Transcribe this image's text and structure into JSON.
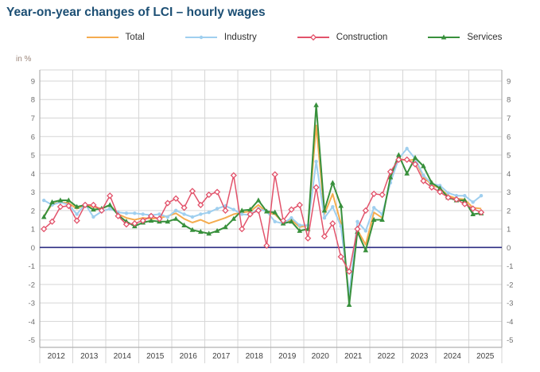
{
  "header": {
    "title": "Year-on-year changes of LCI – hourly wages"
  },
  "chart": {
    "unit_label": "in %",
    "background": "#ffffff",
    "grid_color": "#d6d6d6",
    "axis_color": "#b0b0b0",
    "zero_line_color": "#2d2e83",
    "tick_label_color": "#6e6e6e",
    "year_label_color": "#3f3f3f",
    "title_color": "#1c4f74"
  },
  "legend": {
    "items": [
      {
        "label": "Total"
      },
      {
        "label": "Industry"
      },
      {
        "label": "Construction"
      },
      {
        "label": "Services"
      }
    ]
  },
  "chart_data": {
    "type": "line",
    "title": "Year-on-year changes of LCI – hourly wages",
    "ylabel": "in %",
    "xlabel": "",
    "frequency": "quarterly",
    "start": "2012-Q1",
    "end": "2025-Q2",
    "categories": [
      "2012",
      "2013",
      "2014",
      "2015",
      "2016",
      "2017",
      "2018",
      "2019",
      "2020",
      "2021",
      "2022",
      "2023",
      "2024",
      "2025"
    ],
    "ylim": [
      -5,
      9
    ],
    "ytick_step": 1,
    "grid": true,
    "legend_position": "top",
    "series": [
      {
        "name": "Total",
        "color": "#f5ac4f",
        "marker": "none",
        "values": [
          1.7,
          2.35,
          2.45,
          2.4,
          2.1,
          2.3,
          2.2,
          2.1,
          2.3,
          1.8,
          1.6,
          1.5,
          1.6,
          1.55,
          1.6,
          1.7,
          1.85,
          1.55,
          1.35,
          1.5,
          1.3,
          1.45,
          1.6,
          1.8,
          1.9,
          1.95,
          2.3,
          1.9,
          1.8,
          1.35,
          1.5,
          1.1,
          1.2,
          6.6,
          1.8,
          2.9,
          1.3,
          -2.8,
          0.95,
          0.15,
          1.9,
          1.6,
          3.7,
          4.8,
          4.7,
          4.75,
          3.8,
          3.4,
          3.2,
          2.8,
          2.65,
          2.6,
          2.15,
          2.1
        ]
      },
      {
        "name": "Industry",
        "color": "#9fcfef",
        "marker": "circle",
        "values": [
          2.55,
          2.3,
          2.45,
          2.3,
          1.8,
          2.35,
          1.65,
          1.95,
          2.1,
          1.9,
          1.85,
          1.85,
          1.8,
          1.75,
          1.8,
          1.65,
          2.0,
          1.8,
          1.65,
          1.8,
          1.9,
          2.1,
          2.25,
          2.05,
          1.8,
          1.75,
          2.1,
          1.95,
          1.4,
          1.3,
          1.6,
          1.2,
          1.2,
          4.65,
          1.6,
          2.2,
          1.15,
          -2.55,
          1.4,
          0.9,
          2.15,
          1.8,
          3.5,
          4.8,
          5.35,
          4.8,
          3.9,
          3.45,
          3.35,
          2.95,
          2.8,
          2.8,
          2.45,
          2.8
        ]
      },
      {
        "name": "Construction",
        "color": "#e2536b",
        "marker": "diamond-open",
        "values": [
          1.0,
          1.4,
          2.2,
          2.25,
          1.45,
          2.3,
          2.3,
          2.0,
          2.8,
          1.7,
          1.25,
          1.3,
          1.45,
          1.7,
          1.55,
          2.4,
          2.65,
          2.15,
          3.05,
          2.3,
          2.85,
          3.0,
          2.0,
          3.9,
          1.0,
          1.8,
          2.0,
          0.1,
          3.95,
          1.45,
          2.05,
          2.3,
          0.5,
          3.25,
          0.6,
          1.3,
          -0.5,
          -1.3,
          1.0,
          2.0,
          2.9,
          2.85,
          4.1,
          4.75,
          4.75,
          4.5,
          3.6,
          3.25,
          3.0,
          2.7,
          2.6,
          2.35,
          2.1,
          1.9
        ]
      },
      {
        "name": "Services",
        "color": "#38903c",
        "marker": "triangle",
        "values": [
          1.65,
          2.45,
          2.55,
          2.55,
          2.2,
          2.3,
          2.05,
          2.1,
          2.3,
          1.75,
          1.4,
          1.15,
          1.35,
          1.45,
          1.4,
          1.4,
          1.55,
          1.2,
          0.95,
          0.85,
          0.75,
          0.9,
          1.1,
          1.55,
          2.0,
          2.05,
          2.55,
          1.95,
          1.9,
          1.3,
          1.4,
          0.9,
          1.0,
          7.7,
          2.0,
          3.5,
          2.25,
          -3.1,
          0.85,
          -0.15,
          1.5,
          1.5,
          3.8,
          5.0,
          4.0,
          4.85,
          4.4,
          3.5,
          3.2,
          2.7,
          2.55,
          2.55,
          1.8,
          1.85
        ]
      }
    ]
  }
}
